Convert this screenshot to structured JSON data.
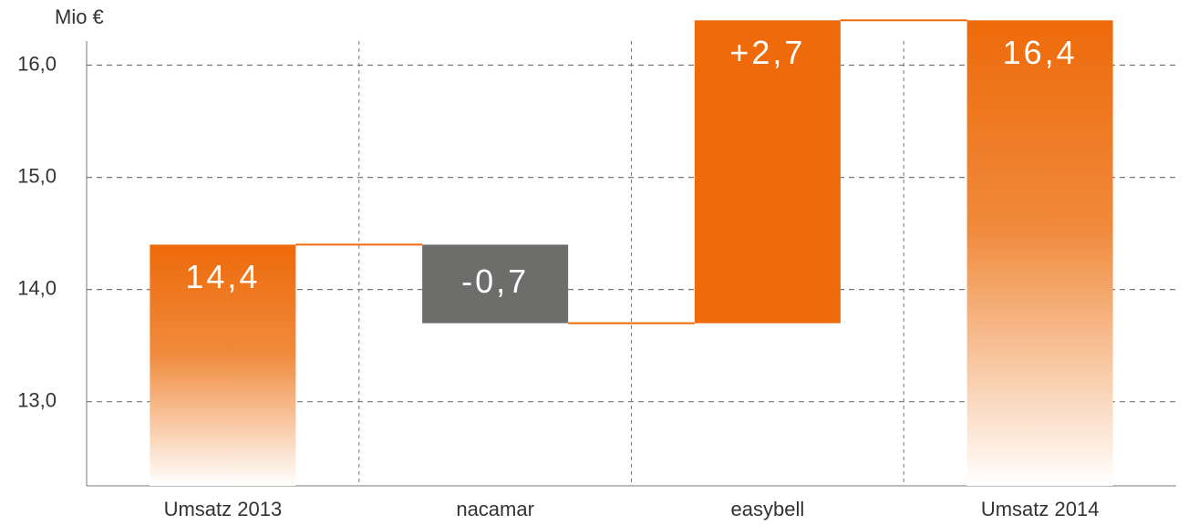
{
  "chart_data": {
    "type": "waterfall",
    "title": "Mio €",
    "categories": [
      "Umsatz 2013",
      "nacamar",
      "easybell",
      "Umsatz 2014"
    ],
    "values": [
      14.4,
      -0.7,
      2.7,
      16.4
    ],
    "value_labels": [
      "14,4",
      "-0,7",
      "+2,7",
      "16,4"
    ],
    "colors": [
      "#ee6a0a",
      "#6d6d6b",
      "#ee6a0a",
      "#ee6a0a"
    ],
    "ylim": [
      12.25,
      16.5
    ],
    "yticks": [
      {
        "value": 13,
        "label": "13,0"
      },
      {
        "value": 14,
        "label": "14,0"
      },
      {
        "value": 15,
        "label": "15,0"
      },
      {
        "value": 16,
        "label": "16,0"
      }
    ],
    "grid": true
  }
}
